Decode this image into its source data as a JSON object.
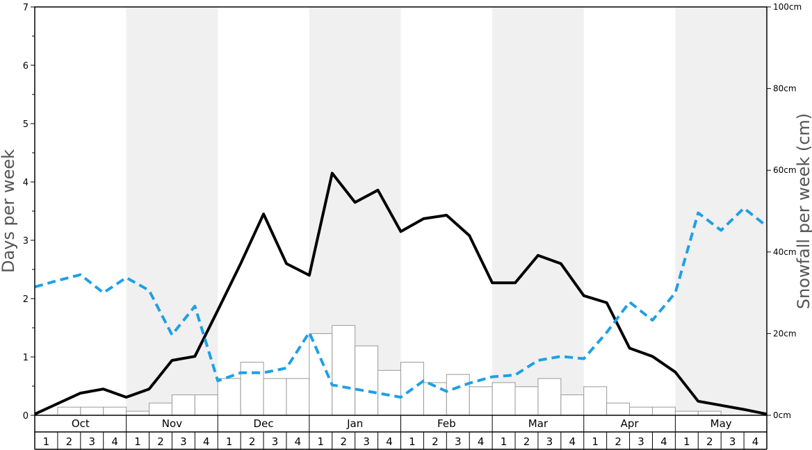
{
  "chart_data": {
    "type": "bar+line",
    "left_axis": {
      "label": "Days per week",
      "ylim": [
        0,
        7
      ],
      "ticks": [
        0,
        1,
        2,
        3,
        4,
        5,
        6,
        7
      ]
    },
    "right_axis": {
      "label": "Snowfall per week (cm)",
      "ylim": [
        0,
        100
      ],
      "ticks": [
        "0cm",
        "20cm",
        "40cm",
        "60cm",
        "80cm",
        "100cm"
      ],
      "tick_values": [
        0,
        20,
        40,
        60,
        80,
        100
      ]
    },
    "months": [
      "Oct",
      "Nov",
      "Dec",
      "Jan",
      "Feb",
      "Mar",
      "Apr",
      "May"
    ],
    "weeks_per_month": [
      "1",
      "2",
      "3",
      "4"
    ],
    "shaded_months": [
      "Nov",
      "Jan",
      "Mar",
      "May"
    ],
    "snowfall_bars_cm": [
      0,
      2,
      2,
      2,
      1,
      3,
      5,
      5,
      9,
      13,
      9,
      9,
      20,
      22,
      17,
      11,
      13,
      8,
      10,
      7,
      8,
      7,
      9,
      5,
      7,
      3,
      2,
      2,
      1,
      1,
      0,
      0
    ],
    "series": [
      {
        "style": "solid-black",
        "values": [
          0.02,
          0.2,
          0.38,
          0.45,
          0.31,
          0.45,
          0.94,
          1.01,
          1.8,
          2.6,
          3.45,
          2.6,
          2.4,
          4.15,
          3.65,
          3.86,
          3.15,
          3.37,
          3.43,
          3.08,
          2.27,
          2.27,
          2.74,
          2.6,
          2.05,
          1.93,
          1.15,
          1.01,
          0.74,
          0.24,
          0.17,
          0.1,
          0.02
        ]
      },
      {
        "style": "dashed-blue",
        "values": [
          2.2,
          2.31,
          2.41,
          2.1,
          2.36,
          2.14,
          1.38,
          1.87,
          0.59,
          0.73,
          0.73,
          0.81,
          1.42,
          0.52,
          0.45,
          0.38,
          0.31,
          0.59,
          0.41,
          0.55,
          0.66,
          0.69,
          0.94,
          1.01,
          0.97,
          1.42,
          1.94,
          1.63,
          2.1,
          3.47,
          3.17,
          3.55,
          3.24
        ]
      }
    ],
    "grid": false,
    "legend": "none"
  }
}
